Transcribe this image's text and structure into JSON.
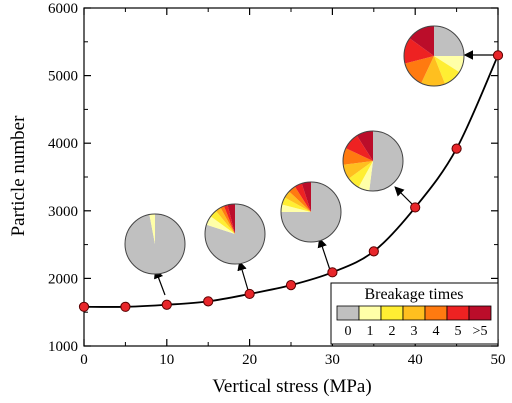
{
  "chart_data": {
    "type": "scatter",
    "title": "",
    "xlabel": "Vertical stress (MPa)",
    "ylabel": "Particle number",
    "xlim": [
      0,
      50
    ],
    "ylim": [
      1000,
      6000
    ],
    "xticks": [
      0,
      10,
      20,
      30,
      40,
      50
    ],
    "yticks": [
      1000,
      2000,
      3000,
      4000,
      5000,
      6000
    ],
    "minor_ticks": true,
    "grid": false,
    "fit_curve": "exponential",
    "marker_color": "#e8262a",
    "series": [
      {
        "x": [
          0,
          5,
          10,
          15,
          20,
          25,
          30,
          35,
          40,
          45,
          50
        ],
        "y": [
          1580,
          1580,
          1610,
          1660,
          1770,
          1900,
          2090,
          2400,
          3050,
          3920,
          5300
        ]
      }
    ],
    "pies": [
      {
        "x": 10,
        "slices": [
          97,
          3,
          0,
          0,
          0,
          0,
          0
        ]
      },
      {
        "x": 20,
        "slices": [
          80,
          5,
          4,
          3,
          2,
          2,
          4
        ]
      },
      {
        "x": 30,
        "slices": [
          75,
          4,
          4,
          4,
          4,
          4,
          5
        ]
      },
      {
        "x": 40,
        "slices": [
          52,
          6,
          7,
          8,
          9,
          9,
          9
        ]
      },
      {
        "x": 50,
        "slices": [
          25,
          9,
          10,
          13,
          14,
          14,
          15
        ]
      }
    ],
    "legend": {
      "title": "Breakage times",
      "placement": "bottom-right",
      "entries": [
        {
          "label": "0",
          "color": "#c0c0c0"
        },
        {
          "label": "1",
          "color": "#ffffa8"
        },
        {
          "label": "2",
          "color": "#ffee33"
        },
        {
          "label": "3",
          "color": "#ffbf1f"
        },
        {
          "label": "4",
          "color": "#ff7a10"
        },
        {
          "label": "5",
          "color": "#ee2222"
        },
        {
          "label": ">5",
          "color": "#bb0d2a"
        }
      ]
    }
  }
}
